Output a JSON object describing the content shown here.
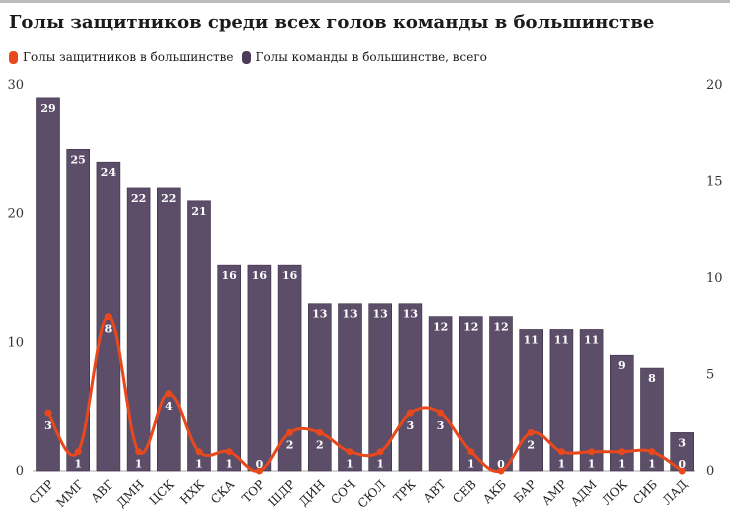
{
  "title": "Голы защитников среди всех голов команды в большинстве",
  "legend": [
    {
      "label": "Голы защитников в большинстве",
      "color": "#e8481c"
    },
    {
      "label": "Голы команды в большинстве, всего",
      "color": "#4b3d57"
    }
  ],
  "chart_data": {
    "type": "bar",
    "categories": [
      "СПР",
      "ММГ",
      "АВГ",
      "ДМН",
      "ЦСК",
      "НХК",
      "СКА",
      "ТОР",
      "ШДР",
      "ДИН",
      "СОЧ",
      "СЮЛ",
      "ТРК",
      "АВТ",
      "СЕВ",
      "АКБ",
      "БАР",
      "АМР",
      "АДМ",
      "ЛОК",
      "СИБ",
      "ЛАД"
    ],
    "series": [
      {
        "name": "Голы команды в большинстве, всего",
        "type": "bar",
        "axis": "left",
        "color": "#5c4e69",
        "values": [
          29,
          25,
          24,
          22,
          22,
          21,
          16,
          16,
          16,
          13,
          13,
          13,
          13,
          12,
          12,
          12,
          11,
          11,
          11,
          9,
          8,
          3
        ]
      },
      {
        "name": "Голы защитников в большинстве",
        "type": "line",
        "axis": "right",
        "color": "#e8481c",
        "values": [
          3,
          1,
          8,
          1,
          4,
          1,
          1,
          0,
          2,
          2,
          1,
          1,
          3,
          3,
          1,
          0,
          2,
          1,
          1,
          1,
          1,
          0
        ]
      }
    ],
    "y_left": {
      "min": 0,
      "max": 30,
      "ticks": [
        0,
        10,
        20,
        30
      ]
    },
    "y_right": {
      "min": 0,
      "max": 20,
      "ticks": [
        0,
        5,
        10,
        15,
        20
      ]
    },
    "grid": false,
    "legend_position": "top-left"
  }
}
